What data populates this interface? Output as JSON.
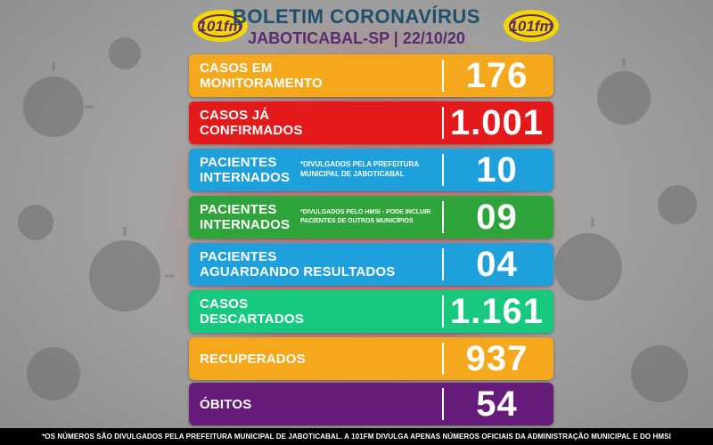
{
  "header": {
    "title": "BOLETIM CORONAVÍRUS",
    "subtitle": "JABOTICABAL-SP | 22/10/20",
    "logo_text": "101fm"
  },
  "rows": [
    {
      "label_line1": "CASOS EM",
      "label_line2": "MONITORAMENTO",
      "note": "",
      "value": "176",
      "color": "#f5a81c"
    },
    {
      "label_line1": "CASOS JÁ",
      "label_line2": "CONFIRMADOS",
      "note": "",
      "value": "1.001",
      "color": "#e3191c"
    },
    {
      "label_line1": "PACIENTES",
      "label_line2": "INTERNADOS",
      "note": "*DIVULGADOS PELA PREFEITURA MUNICIPAL DE JABOTICABAL",
      "value": "10",
      "color": "#1ea0dd"
    },
    {
      "label_line1": "PACIENTES",
      "label_line2": "INTERNADOS",
      "note": "*DIVULGADOS PELO HMSI - PODE INCLUIR PACIENTES DE OUTROS MUNICÍPIOS",
      "value": "09",
      "color": "#2ea43a"
    },
    {
      "label_line1": "PACIENTES",
      "label_line2": "AGUARDANDO RESULTADOS",
      "note": "",
      "value": "04",
      "color": "#1ea0dd"
    },
    {
      "label_line1": "CASOS",
      "label_line2": "DESCARTADOS",
      "note": "",
      "value": "1.161",
      "color": "#17c97f"
    },
    {
      "label_line1": "RECUPERADOS",
      "label_line2": "",
      "note": "",
      "value": "937",
      "color": "#f5a81c"
    },
    {
      "label_line1": "ÓBITOS",
      "label_line2": "",
      "note": "",
      "value": "54",
      "color": "#661a7a"
    }
  ],
  "footer": {
    "text": "*OS NÚMEROS SÃO DIVULGADOS PELA PREFEITURA MUNICIPAL DE JABOTICABAL. A 101FM DIVULGA APENAS NÚMEROS OFICIAIS DA ADMINISTRAÇÃO MUNICIPAL E DO HMSI"
  },
  "colors": {
    "title": "#1f4f6a",
    "subtitle": "#5b2b6e",
    "logo_yellow": "#f4d600",
    "logo_purple": "#5b2b6e"
  }
}
